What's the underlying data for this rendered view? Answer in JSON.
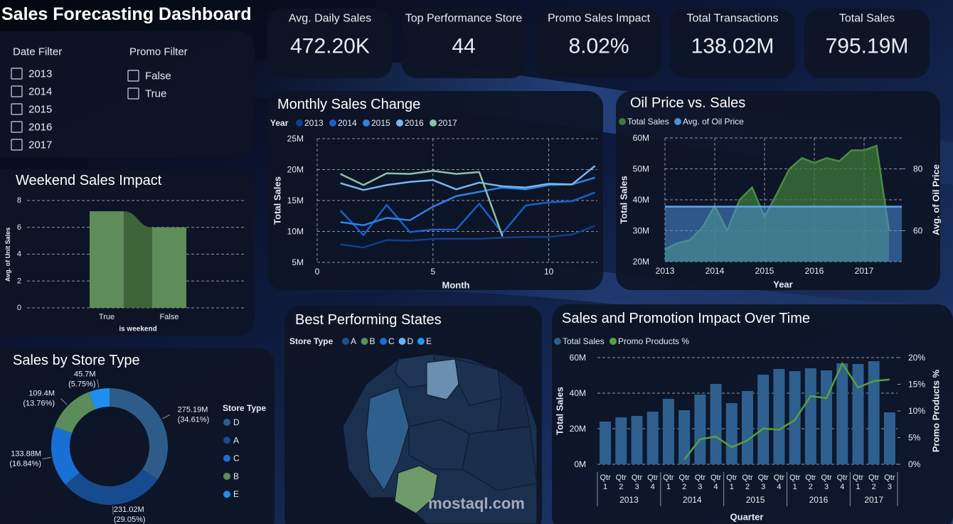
{
  "header": {
    "title": "Sales Forecasting Dashboard"
  },
  "filters": [
    {
      "title": "Date Filter",
      "options": [
        "2013",
        "2014",
        "2015",
        "2016",
        "2017"
      ]
    },
    {
      "title": "Promo Filter",
      "options": [
        "False",
        "True"
      ]
    }
  ],
  "kpis": [
    {
      "label": "Avg. Daily Sales",
      "value": "472.20K"
    },
    {
      "label": "Top Performance Store",
      "value": "44"
    },
    {
      "label": "Promo Sales Impact",
      "value": "8.02%"
    },
    {
      "label": "Total Transactions",
      "value": "138.02M"
    },
    {
      "label": "Total Sales",
      "value": "795.19M"
    }
  ],
  "watermark": "mostaql.com",
  "chart_data": [
    {
      "type": "line",
      "title": "Monthly Sales Change",
      "legend_title": "Year",
      "x_label": "Month",
      "y_label": "Total Sales",
      "x": [
        1,
        2,
        3,
        4,
        5,
        6,
        7,
        8,
        9,
        10,
        11,
        12
      ],
      "xlim": [
        0,
        12.1
      ],
      "xticks": [
        0,
        5,
        10
      ],
      "ylim": [
        5,
        25
      ],
      "yticks": [
        {
          "value": 5,
          "label": "5M"
        },
        {
          "value": 10,
          "label": "10M"
        },
        {
          "value": 15,
          "label": "15M"
        },
        {
          "value": 20,
          "label": "20M"
        },
        {
          "value": 25,
          "label": "25M"
        }
      ],
      "grid": true,
      "series": [
        {
          "name": "2013",
          "color": "#123f86",
          "values": [
            7.9,
            7.4,
            8.6,
            8.5,
            8.8,
            8.8,
            8.8,
            9.0,
            9.1,
            9.1,
            9.5,
            10.9
          ]
        },
        {
          "name": "2014",
          "color": "#1a5fcc",
          "values": [
            13.4,
            9.4,
            14.3,
            9.9,
            10.3,
            10.3,
            14.5,
            9.7,
            14.2,
            14.7,
            14.9,
            16.3
          ]
        },
        {
          "name": "2015",
          "color": "#2f82e6",
          "values": [
            11.5,
            11.0,
            12.2,
            11.8,
            14.0,
            15.7,
            16.4,
            17.1,
            16.8,
            17.5,
            17.6,
            18.7
          ]
        },
        {
          "name": "2016",
          "color": "#7ab6ee",
          "values": [
            17.8,
            16.7,
            17.5,
            18.0,
            18.3,
            16.8,
            17.9,
            17.3,
            17.1,
            17.7,
            17.6,
            20.6
          ]
        },
        {
          "name": "2017",
          "color": "#8fc0aa",
          "values": [
            19.3,
            17.5,
            19.4,
            19.3,
            19.8,
            19.3,
            19.6,
            9.2,
            null,
            null,
            null,
            null
          ]
        }
      ]
    },
    {
      "type": "area",
      "title": "Oil Price vs. Sales",
      "x_label": "Year",
      "y_label": "Total Sales",
      "y2_label": "Avg. of Oil Price",
      "categories": [
        "2013",
        null,
        null,
        null,
        "2014",
        null,
        null,
        null,
        "2015",
        null,
        null,
        null,
        "2016",
        null,
        null,
        null,
        "2017",
        null,
        null
      ],
      "ylim": [
        20,
        60
      ],
      "yticks": [
        {
          "value": 20,
          "label": "20M"
        },
        {
          "value": 30,
          "label": "30M"
        },
        {
          "value": 40,
          "label": "40M"
        },
        {
          "value": 50,
          "label": "50M"
        },
        {
          "value": 60,
          "label": "60M"
        }
      ],
      "y2lim": [
        50,
        90
      ],
      "y2ticks": [
        60,
        80
      ],
      "grid": true,
      "series": [
        {
          "name": "Total Sales",
          "color": "#3e7a3a",
          "values": [
            24,
            26,
            27,
            31,
            38,
            30,
            40,
            44,
            34.5,
            42,
            50,
            53.5,
            52,
            53.5,
            52.5,
            56,
            56,
            57.5,
            30
          ]
        },
        {
          "name": "Avg. of Oil Price",
          "color": "#4a8fd8",
          "axis": "y2",
          "values": [
            67.8,
            67.8,
            67.8,
            67.8,
            67.8,
            67.8,
            67.8,
            67.8,
            67.8,
            67.8,
            67.8,
            67.8,
            67.8,
            67.8,
            67.8,
            67.8,
            67.8,
            67.8,
            67.8
          ]
        }
      ]
    },
    {
      "type": "bar",
      "title": "Weekend Sales Impact",
      "x_label": "is weekend",
      "y_label": "Avg. of Unit Sales",
      "categories": [
        "True",
        "False"
      ],
      "values": [
        7.2,
        6.0
      ],
      "color": "#5e8d5a",
      "ylim": [
        0,
        8
      ],
      "yticks": [
        0,
        2,
        4,
        6,
        8
      ],
      "grid": true
    },
    {
      "type": "donut",
      "title": "Sales by Store Type",
      "legend_title": "Store Type",
      "categories": [
        "D",
        "A",
        "C",
        "B",
        "E"
      ],
      "values": [
        275.19,
        231.02,
        133.88,
        109.4,
        45.7
      ],
      "value_labels": [
        "275.19M",
        "231.02M",
        "133.88M",
        "109.4M",
        "45.7M"
      ],
      "percents": [
        34.61,
        29.05,
        16.84,
        13.76,
        5.75
      ],
      "percent_labels": [
        "(34.61%)",
        "(29.05%)",
        "(16.84%)",
        "(13.76%)",
        "(5.75%)"
      ],
      "colors": [
        "#2d5c8a",
        "#174b8f",
        "#1870d5",
        "#5b8c5a",
        "#1e8fee"
      ]
    },
    {
      "type": "map",
      "title": "Best Performing States",
      "legend_title": "Store Type",
      "series": [
        {
          "name": "A",
          "color": "#20508c"
        },
        {
          "name": "B",
          "color": "#5b8c5a"
        },
        {
          "name": "C",
          "color": "#1a6fd6"
        },
        {
          "name": "D",
          "color": "#6ab0f0"
        },
        {
          "name": "E",
          "color": "#2196f3"
        }
      ]
    },
    {
      "type": "combo",
      "title": "Sales and Promotion Impact Over Time",
      "x_label": "Quarter",
      "y_label": "Total Sales",
      "y2_label": "Promo Products %",
      "groups": [
        {
          "name": "2013",
          "categories": [
            "Qtr 1",
            "Qtr 2",
            "Qtr 3",
            "Qtr 4"
          ]
        },
        {
          "name": "2014",
          "categories": [
            "Qtr 1",
            "Qtr 2",
            "Qtr 3",
            "Qtr 4"
          ]
        },
        {
          "name": "2015",
          "categories": [
            "Qtr 1",
            "Qtr 2",
            "Qtr 3",
            "Qtr 4"
          ]
        },
        {
          "name": "2016",
          "categories": [
            "Qtr 1",
            "Qtr 2",
            "Qtr 3",
            "Qtr 4"
          ]
        },
        {
          "name": "2017",
          "categories": [
            "Qtr 1",
            "Qtr 2",
            "Qtr 3"
          ]
        }
      ],
      "ylim": [
        0,
        60
      ],
      "yticks": [
        {
          "value": 0,
          "label": "0M"
        },
        {
          "value": 20,
          "label": "20M"
        },
        {
          "value": 40,
          "label": "40M"
        },
        {
          "value": 60,
          "label": "60M"
        }
      ],
      "y2lim": [
        0,
        20
      ],
      "y2ticks": [
        {
          "value": 0,
          "label": "0%"
        },
        {
          "value": 5,
          "label": "5%"
        },
        {
          "value": 10,
          "label": "10%"
        },
        {
          "value": 15,
          "label": "15%"
        },
        {
          "value": 20,
          "label": "20%"
        }
      ],
      "grid": true,
      "series": [
        {
          "name": "Total Sales",
          "color": "#2f5f8f",
          "type": "bar",
          "values": [
            24,
            26.4,
            27.2,
            29.6,
            36.8,
            30.4,
            39.2,
            45.2,
            34.4,
            41.2,
            50.4,
            53.6,
            52.4,
            54,
            52.8,
            56.8,
            56.4,
            58,
            29.2
          ]
        },
        {
          "name": "Promo Products %",
          "color": "#5a9e3c",
          "type": "line",
          "axis": "y2",
          "values": [
            null,
            null,
            null,
            null,
            null,
            0.9,
            4.7,
            5.2,
            3.2,
            4.5,
            6.7,
            6.5,
            8.3,
            12.8,
            12.4,
            18.9,
            14.4,
            15.6,
            15.9
          ]
        }
      ]
    }
  ]
}
